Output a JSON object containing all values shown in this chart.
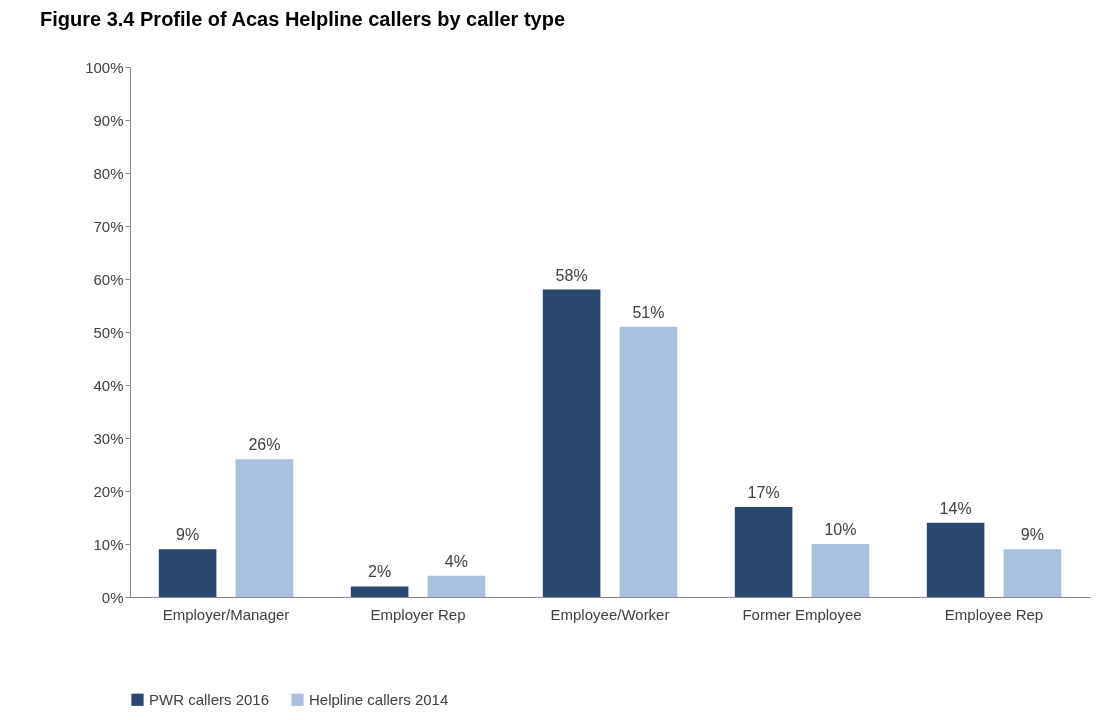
{
  "chart_data": {
    "type": "bar",
    "title": "Figure 3.4 Profile of Acas Helpline callers by caller type",
    "categories": [
      "Employer/Manager",
      "Employer Rep",
      "Employee/Worker",
      "Former Employee",
      "Employee Rep"
    ],
    "series": [
      {
        "name": "PWR callers 2016",
        "color": "#2a4770",
        "values": [
          9,
          2,
          58,
          17,
          14
        ],
        "value_labels": [
          "9%",
          "2%",
          "58%",
          "17%",
          "14%"
        ]
      },
      {
        "name": "Helpline callers 2014",
        "color": "#a9c0df",
        "values": [
          26,
          4,
          51,
          10,
          9
        ],
        "value_labels": [
          "26%",
          "4%",
          "51%",
          "10%",
          "9%"
        ]
      }
    ],
    "ylim": [
      0,
      100
    ],
    "yticks": [
      {
        "value": 0,
        "label": "0%"
      },
      {
        "value": 10,
        "label": "10%"
      },
      {
        "value": 20,
        "label": "20%"
      },
      {
        "value": 30,
        "label": "30%"
      },
      {
        "value": 40,
        "label": "40%"
      },
      {
        "value": 50,
        "label": "50%"
      },
      {
        "value": 60,
        "label": "60%"
      },
      {
        "value": 70,
        "label": "70%"
      },
      {
        "value": 80,
        "label": "80%"
      },
      {
        "value": 90,
        "label": "90%"
      },
      {
        "value": 100,
        "label": "100%"
      }
    ],
    "grid": false,
    "legend": "bottom"
  }
}
